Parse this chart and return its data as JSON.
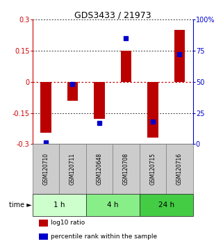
{
  "title": "GDS3433 / 21973",
  "samples": [
    "GSM120710",
    "GSM120711",
    "GSM120648",
    "GSM120708",
    "GSM120715",
    "GSM120716"
  ],
  "log10_ratio": [
    -0.245,
    -0.09,
    -0.18,
    0.15,
    -0.27,
    0.25
  ],
  "percentile_rank": [
    1,
    48,
    17,
    85,
    18,
    72
  ],
  "group_ranges": [
    [
      0,
      1,
      "1 h",
      "#ccffcc"
    ],
    [
      2,
      3,
      "4 h",
      "#88ee88"
    ],
    [
      4,
      5,
      "24 h",
      "#44cc44"
    ]
  ],
  "ylim_left": [
    -0.3,
    0.3
  ],
  "ylim_right": [
    0,
    100
  ],
  "left_ticks": [
    -0.3,
    -0.15,
    0,
    0.15,
    0.3
  ],
  "right_ticks": [
    0,
    25,
    50,
    75,
    100
  ],
  "left_tick_labels": [
    "-0.3",
    "-0.15",
    "0",
    "0.15",
    "0.3"
  ],
  "right_tick_labels": [
    "0",
    "25",
    "50",
    "75",
    "100%"
  ],
  "bar_color": "#bb0000",
  "dot_color": "#0000cc",
  "hline0_color": "#cc0000",
  "hline_color": "#333333",
  "bg_color": "#ffffff",
  "sample_bg_color": "#cccccc",
  "sample_border_color": "#888888",
  "bar_width": 0.4
}
